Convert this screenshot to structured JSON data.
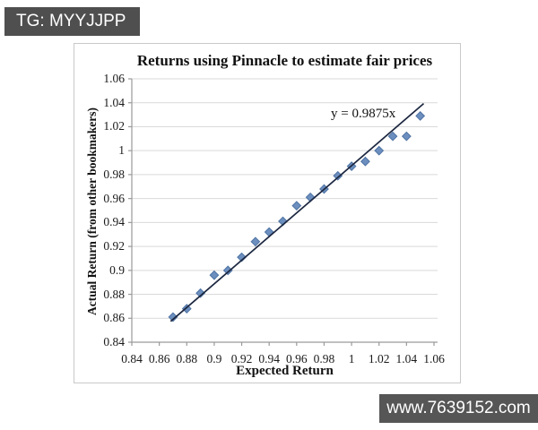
{
  "watermarks": {
    "top_left": "TG: MYYJJPP",
    "bottom_right": "www.7639152.com"
  },
  "chart": {
    "title": "Returns using Pinnacle to estimate fair prices",
    "x_axis_title": "Expected Return",
    "y_axis_title": "Actual Return (from other bookmakers)",
    "equation_label": "y = 0.9875x"
  },
  "chart_data": {
    "type": "scatter",
    "title": "Returns using Pinnacle to estimate fair prices",
    "xlabel": "Expected Return",
    "ylabel": "Actual Return (from other bookmakers)",
    "xlim": [
      0.84,
      1.06
    ],
    "ylim": [
      0.84,
      1.06
    ],
    "x_tick_labels": [
      "0.84",
      "0.86",
      "0.88",
      "0.9",
      "0.92",
      "0.94",
      "0.96",
      "0.98",
      "1",
      "1.02",
      "1.04",
      "1.06"
    ],
    "y_tick_labels": [
      "0.84",
      "0.86",
      "0.88",
      "0.9",
      "0.92",
      "0.94",
      "0.96",
      "0.98",
      "1",
      "1.02",
      "1.04",
      "1.06"
    ],
    "grid": "horizontal-only",
    "legend": "none",
    "marker_shape": "diamond",
    "points": [
      [
        0.87,
        0.861
      ],
      [
        0.88,
        0.868
      ],
      [
        0.89,
        0.881
      ],
      [
        0.9,
        0.896
      ],
      [
        0.91,
        0.9
      ],
      [
        0.92,
        0.911
      ],
      [
        0.93,
        0.924
      ],
      [
        0.94,
        0.932
      ],
      [
        0.95,
        0.941
      ],
      [
        0.96,
        0.954
      ],
      [
        0.97,
        0.961
      ],
      [
        0.98,
        0.968
      ],
      [
        0.99,
        0.979
      ],
      [
        1.0,
        0.987
      ],
      [
        1.01,
        0.991
      ],
      [
        1.02,
        1.0
      ],
      [
        1.03,
        1.012
      ],
      [
        1.04,
        1.012
      ],
      [
        1.05,
        1.029
      ]
    ],
    "trendline": {
      "label": "y = 0.9875x",
      "slope": 0.9875,
      "intercept": 0,
      "x_start": 0.8683,
      "x_end": 1.0525
    },
    "colors": {
      "marker_fill": "#6c8fbf",
      "marker_stroke": "#4e73a3",
      "trendline": "#1c2740",
      "gridline": "#d9d9d9",
      "axis": "#9a9a9a",
      "banner_background": "#4f4f4f"
    }
  }
}
